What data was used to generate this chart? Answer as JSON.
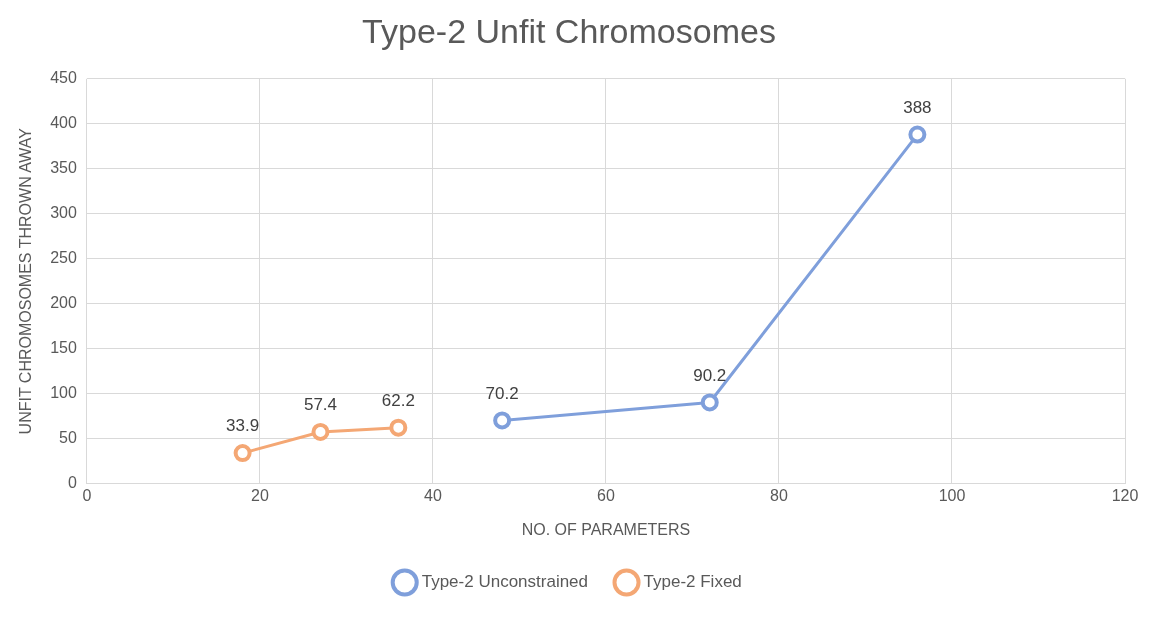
{
  "chart_data": {
    "type": "line",
    "title": "Type-2 Unfit Chromosomes",
    "xlabel": "NO. OF PARAMETERS",
    "ylabel": "UNFIT CHROMOSOMES THROWN AWAY",
    "series": [
      {
        "name": "Type-2 Unconstrained",
        "color": "#7f9fdb",
        "x": [
          48,
          72,
          96
        ],
        "values": [
          70.2,
          90.2,
          388
        ]
      },
      {
        "name": "Type-2 Fixed",
        "color": "#f4a774",
        "x": [
          18,
          27,
          36
        ],
        "values": [
          33.9,
          57.4,
          62.2
        ]
      }
    ],
    "xlim": [
      0,
      120
    ],
    "xticks": [
      0,
      20,
      40,
      60,
      80,
      100,
      120
    ],
    "ylim": [
      0,
      450
    ],
    "yticks": [
      0,
      50,
      100,
      150,
      200,
      250,
      300,
      350,
      400,
      450
    ],
    "grid": true,
    "legend": "bottom",
    "marker": "circle",
    "line_style": "solid",
    "data_labels": true
  }
}
